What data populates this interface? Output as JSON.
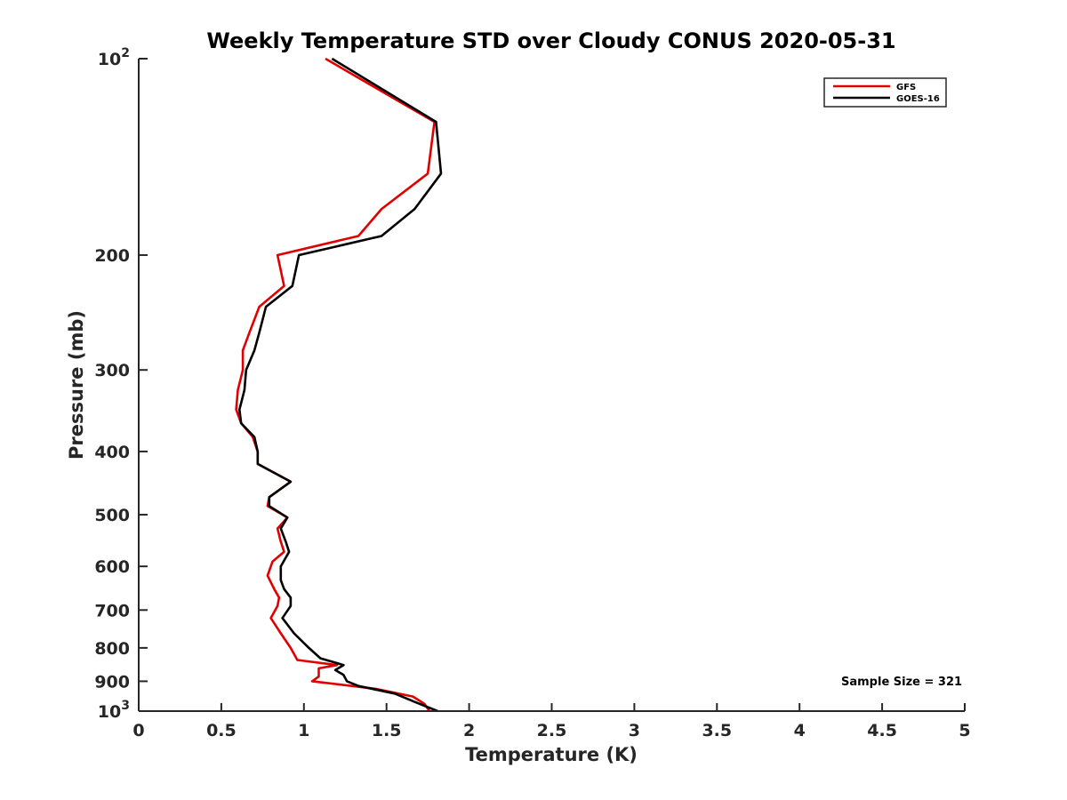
{
  "chart_data": {
    "type": "line",
    "title": "Weekly Temperature STD over Cloudy CONUS 2020-05-31",
    "xlabel": "Temperature (K)",
    "ylabel": "Pressure (mb)",
    "xlim": [
      0,
      5
    ],
    "ylim": [
      100,
      1000
    ],
    "y_scale": "log",
    "y_reversed": true,
    "grid": false,
    "legend_position": "top-right",
    "x_ticks": [
      0,
      0.5,
      1,
      1.5,
      2,
      2.5,
      3,
      3.5,
      4,
      4.5,
      5
    ],
    "x_tick_labels": [
      "0",
      "0.5",
      "1",
      "1.5",
      "2",
      "2.5",
      "3",
      "3.5",
      "4",
      "4.5",
      "5"
    ],
    "y_ticks": [
      100,
      200,
      300,
      400,
      500,
      600,
      700,
      800,
      900,
      1000
    ],
    "y_tick_labels": [
      {
        "base": "10",
        "exp": "2"
      },
      {
        "base": "200",
        "exp": ""
      },
      {
        "base": "300",
        "exp": ""
      },
      {
        "base": "400",
        "exp": ""
      },
      {
        "base": "500",
        "exp": ""
      },
      {
        "base": "600",
        "exp": ""
      },
      {
        "base": "700",
        "exp": ""
      },
      {
        "base": "800",
        "exp": ""
      },
      {
        "base": "900",
        "exp": ""
      },
      {
        "base": "10",
        "exp": "3"
      }
    ],
    "annotation": "Sample Size = 321",
    "series": [
      {
        "name": "GFS",
        "color": "#e00000",
        "points": [
          [
            1.13,
            100
          ],
          [
            1.79,
            125
          ],
          [
            1.75,
            150
          ],
          [
            1.47,
            170
          ],
          [
            1.33,
            187
          ],
          [
            0.84,
            200
          ],
          [
            0.88,
            223
          ],
          [
            0.73,
            240
          ],
          [
            0.67,
            263
          ],
          [
            0.63,
            280
          ],
          [
            0.63,
            300
          ],
          [
            0.6,
            322
          ],
          [
            0.59,
            345
          ],
          [
            0.62,
            362
          ],
          [
            0.69,
            380
          ],
          [
            0.72,
            400
          ],
          [
            0.72,
            418
          ],
          [
            0.92,
            445
          ],
          [
            0.79,
            470
          ],
          [
            0.78,
            485
          ],
          [
            0.9,
            505
          ],
          [
            0.84,
            525
          ],
          [
            0.86,
            550
          ],
          [
            0.88,
            570
          ],
          [
            0.81,
            590
          ],
          [
            0.78,
            620
          ],
          [
            0.82,
            650
          ],
          [
            0.85,
            670
          ],
          [
            0.84,
            690
          ],
          [
            0.8,
            720
          ],
          [
            0.86,
            760
          ],
          [
            0.92,
            800
          ],
          [
            0.96,
            835
          ],
          [
            1.2,
            850
          ],
          [
            1.09,
            860
          ],
          [
            1.09,
            885
          ],
          [
            1.05,
            900
          ],
          [
            1.44,
            925
          ],
          [
            1.66,
            950
          ],
          [
            1.73,
            975
          ],
          [
            1.76,
            1000
          ]
        ]
      },
      {
        "name": "GOES-16",
        "color": "#000000",
        "points": [
          [
            1.17,
            100
          ],
          [
            1.8,
            125
          ],
          [
            1.83,
            150
          ],
          [
            1.67,
            170
          ],
          [
            1.47,
            187
          ],
          [
            0.97,
            200
          ],
          [
            0.93,
            223
          ],
          [
            0.77,
            240
          ],
          [
            0.73,
            263
          ],
          [
            0.7,
            280
          ],
          [
            0.65,
            300
          ],
          [
            0.64,
            322
          ],
          [
            0.61,
            345
          ],
          [
            0.62,
            362
          ],
          [
            0.7,
            380
          ],
          [
            0.72,
            400
          ],
          [
            0.72,
            418
          ],
          [
            0.92,
            445
          ],
          [
            0.79,
            470
          ],
          [
            0.79,
            485
          ],
          [
            0.9,
            505
          ],
          [
            0.86,
            525
          ],
          [
            0.89,
            550
          ],
          [
            0.91,
            570
          ],
          [
            0.86,
            600
          ],
          [
            0.86,
            630
          ],
          [
            0.88,
            650
          ],
          [
            0.92,
            670
          ],
          [
            0.92,
            690
          ],
          [
            0.87,
            720
          ],
          [
            0.94,
            760
          ],
          [
            1.03,
            800
          ],
          [
            1.1,
            830
          ],
          [
            1.24,
            850
          ],
          [
            1.19,
            865
          ],
          [
            1.24,
            880
          ],
          [
            1.26,
            900
          ],
          [
            1.33,
            915
          ],
          [
            1.55,
            940
          ],
          [
            1.68,
            970
          ],
          [
            1.81,
            1000
          ]
        ]
      }
    ]
  }
}
